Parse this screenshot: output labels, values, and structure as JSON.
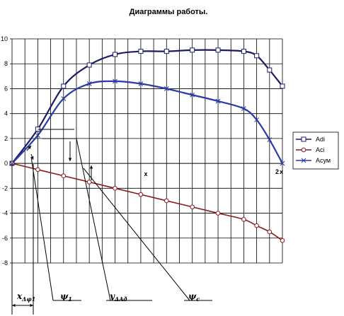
{
  "chart_data": {
    "type": "line",
    "title": "Диаграммы работы.",
    "xlim": [
      0,
      21
    ],
    "ylim": [
      -8,
      10
    ],
    "yticks": [
      -8,
      -6,
      -4,
      -2,
      0,
      2,
      4,
      6,
      8,
      10
    ],
    "ytick_labels": [
      "-8",
      "-6",
      "-4",
      "-2",
      "0",
      "2",
      "4",
      "6",
      "8",
      "10"
    ],
    "grid": true,
    "legend_position": "right",
    "x": [
      0,
      2,
      4,
      6,
      8,
      10,
      12,
      14,
      16,
      18,
      20
    ],
    "series": [
      {
        "name": "Adi",
        "color": "#1a1a66",
        "marker": "square",
        "values": [
          0,
          2.75,
          6.2,
          7.9,
          8.75,
          9.0,
          9.0,
          9.1,
          9.1,
          9.0,
          8.65,
          7.5,
          6.2
        ],
        "x_values": [
          0,
          2,
          4,
          6,
          8,
          10,
          12,
          14,
          16,
          18,
          19,
          20,
          21
        ]
      },
      {
        "name": "Aci",
        "color": "#8b1a1a",
        "marker": "circle",
        "values": [
          0,
          -0.5,
          -1.0,
          -1.5,
          -2.0,
          -2.5,
          -3.0,
          -3.5,
          -4.0,
          -4.5,
          -5.0,
          -5.5,
          -6.2
        ],
        "x_values": [
          0,
          2,
          4,
          6,
          8,
          10,
          12,
          14,
          16,
          18,
          19,
          20,
          21
        ]
      },
      {
        "name": "Aсум",
        "color": "#2a3aa8",
        "marker": "x",
        "values": [
          0,
          2.25,
          5.2,
          6.4,
          6.6,
          6.4,
          6.0,
          5.5,
          5.0,
          4.4,
          3.5,
          1.9,
          0
        ],
        "x_values": [
          0,
          2,
          4,
          6,
          8,
          10,
          12,
          14,
          16,
          18,
          19,
          20,
          21
        ]
      }
    ],
    "annotations": {
      "x_axis_mark": "x",
      "x_end_label": "2",
      "x_end_mark": "x",
      "labels": [
        {
          "main": "x",
          "sub": "Δφ1"
        },
        {
          "main": "ψ",
          "sub": "1"
        },
        {
          "main": "y",
          "sub": "ΔAð"
        },
        {
          "main": "ψ",
          "sub": "c"
        }
      ]
    }
  }
}
